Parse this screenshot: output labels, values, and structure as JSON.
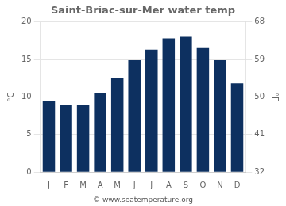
{
  "chart_data": {
    "type": "bar",
    "title": "Saint-Briac-sur-Mer water temp",
    "categories": [
      "J",
      "F",
      "M",
      "A",
      "M",
      "J",
      "J",
      "A",
      "S",
      "O",
      "N",
      "D"
    ],
    "values": [
      9.5,
      8.9,
      8.9,
      10.5,
      12.5,
      14.9,
      16.3,
      17.8,
      18.0,
      16.6,
      14.9,
      11.8
    ],
    "color": "#0d3060",
    "ylabel": "°C",
    "ylim": [
      0,
      20
    ],
    "yticks": [
      0,
      5,
      10,
      15,
      20
    ],
    "y2label": "°F",
    "y2lim": [
      32,
      68
    ],
    "y2ticks": [
      32,
      41,
      50,
      59,
      68
    ],
    "annotations": [
      "© www.seatemperature.org"
    ],
    "grid": true
  }
}
